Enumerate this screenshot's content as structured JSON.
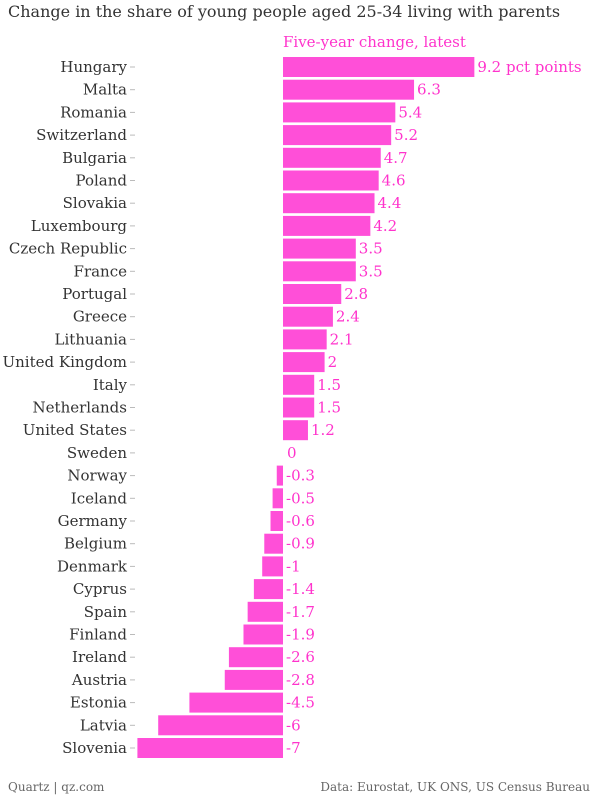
{
  "title": "Change in the share of young people aged 25-34 living with parents",
  "footer": {
    "left": "Quartz | qz.com",
    "right": "Data: Eurostat, UK ONS, US Census Bureau"
  },
  "colors": {
    "bar": "#ff4fd8",
    "label": "#ff33cc"
  },
  "chart_data": {
    "type": "bar",
    "orientation": "horizontal",
    "title": "Change in the share of young people aged 25-34 living with parents",
    "series": [
      {
        "name": "Five-year change, latest",
        "values": [
          9.2,
          6.3,
          5.4,
          5.2,
          4.7,
          4.6,
          4.4,
          4.2,
          3.5,
          3.5,
          2.8,
          2.4,
          2.1,
          2,
          1.5,
          1.5,
          1.2,
          0,
          -0.3,
          -0.5,
          -0.6,
          -0.9,
          -1,
          -1.4,
          -1.7,
          -1.9,
          -2.6,
          -2.8,
          -4.5,
          -6,
          -7
        ]
      }
    ],
    "categories": [
      "Hungary",
      "Malta",
      "Romania",
      "Switzerland",
      "Bulgaria",
      "Poland",
      "Slovakia",
      "Luxembourg",
      "Czech Republic",
      "France",
      "Portugal",
      "Greece",
      "Lithuania",
      "United Kingdom",
      "Italy",
      "Netherlands",
      "United States",
      "Sweden",
      "Norway",
      "Iceland",
      "Germany",
      "Belgium",
      "Denmark",
      "Cyprus",
      "Spain",
      "Finland",
      "Ireland",
      "Austria",
      "Estonia",
      "Latvia",
      "Slovenia"
    ],
    "value_labels": [
      "9.2 pct points",
      "6.3",
      "5.4",
      "5.2",
      "4.7",
      "4.6",
      "4.4",
      "4.2",
      "3.5",
      "3.5",
      "2.8",
      "2.4",
      "2.1",
      "2",
      "1.5",
      "1.5",
      "1.2",
      "0",
      "-0.3",
      "-0.5",
      "-0.6",
      "-0.9",
      "-1",
      "-1.4",
      "-1.7",
      "-1.9",
      "-2.6",
      "-2.8",
      "-4.5",
      "-6",
      "-7"
    ],
    "xlim": [
      -7,
      9.2
    ],
    "grid": false,
    "legend": "top"
  }
}
